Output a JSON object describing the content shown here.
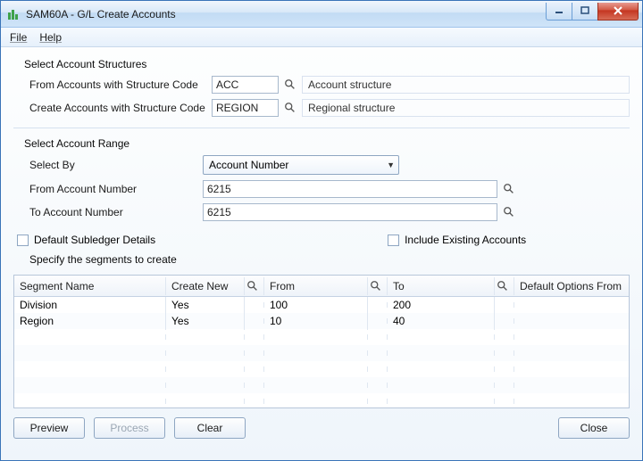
{
  "window": {
    "title": "SAM60A - G/L Create Accounts"
  },
  "menu": {
    "file": "File",
    "help": "Help"
  },
  "structures": {
    "heading": "Select Account Structures",
    "from_label": "From Accounts with Structure Code",
    "from_code": "ACC",
    "from_desc": "Account structure",
    "create_label": "Create Accounts with Structure Code",
    "create_code": "REGION",
    "create_desc": "Regional structure"
  },
  "range": {
    "heading": "Select Account Range",
    "select_by_label": "Select By",
    "select_by_value": "Account Number",
    "from_label": "From Account Number",
    "from_value": "6215",
    "to_label": "To Account Number",
    "to_value": "6215"
  },
  "options": {
    "default_subledger": "Default Subledger Details",
    "include_existing": "Include Existing Accounts"
  },
  "segments": {
    "heading": "Specify the segments to create",
    "columns": {
      "name": "Segment Name",
      "create_new": "Create New",
      "from": "From",
      "to": "To",
      "default_from": "Default Options From"
    },
    "rows": [
      {
        "name": "Division",
        "create_new": "Yes",
        "from": "100",
        "to": "200",
        "default_from": ""
      },
      {
        "name": "Region",
        "create_new": "Yes",
        "from": "10",
        "to": "40",
        "default_from": ""
      }
    ]
  },
  "buttons": {
    "preview": "Preview",
    "process": "Process",
    "clear": "Clear",
    "close": "Close"
  },
  "colors": {
    "accent": "#3a74b8",
    "close_btn": "#c43520",
    "border": "#a7b8cc",
    "bg_grad_top": "#fdfefe",
    "bg_grad_bot": "#eff5fb"
  }
}
